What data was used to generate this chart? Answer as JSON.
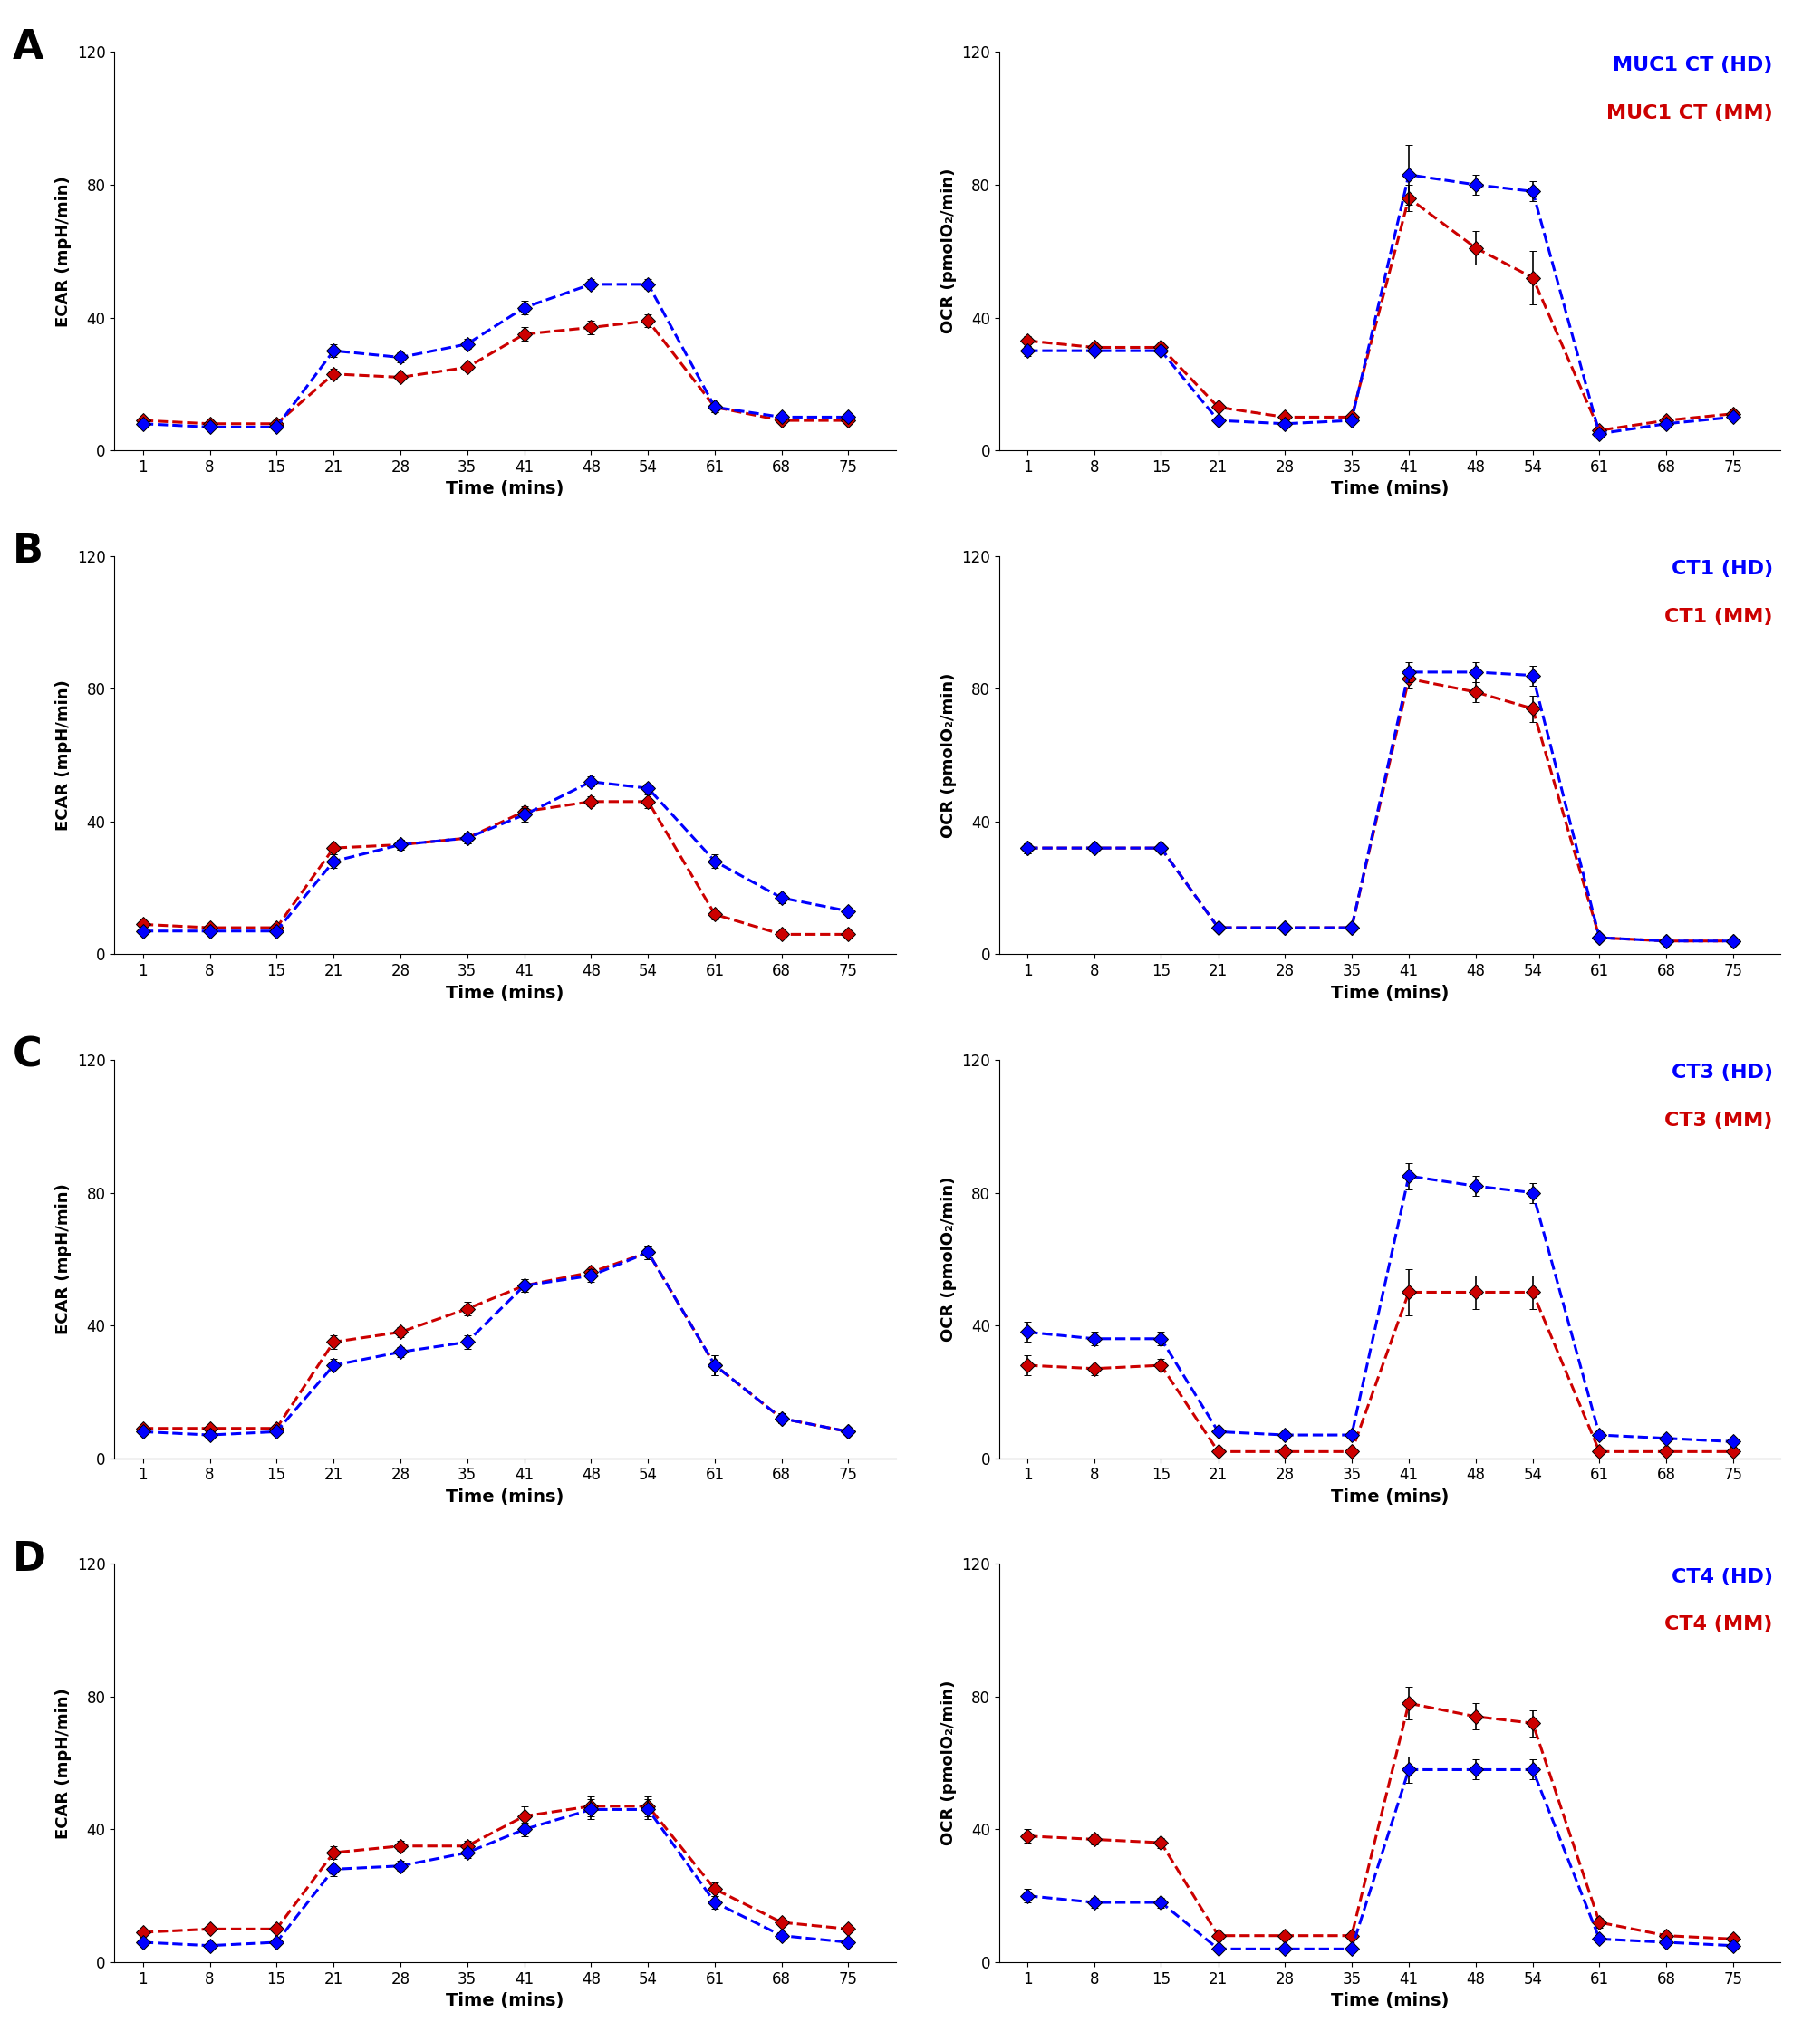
{
  "time_points": [
    1,
    8,
    15,
    21,
    28,
    35,
    41,
    48,
    54,
    61,
    68,
    75
  ],
  "panels": [
    {
      "label": "A",
      "legend_hd": "MUC1 CT (HD)",
      "legend_mm": "MUC1 CT (MM)",
      "ecar_hd": [
        8,
        7,
        7,
        30,
        28,
        32,
        43,
        50,
        50,
        13,
        10,
        10
      ],
      "ecar_mm": [
        9,
        8,
        8,
        23,
        22,
        25,
        35,
        37,
        39,
        13,
        9,
        9
      ],
      "ecar_hd_err": [
        1,
        0.5,
        0.5,
        2,
        1.5,
        1.5,
        2,
        1.5,
        1.5,
        1.5,
        1,
        1
      ],
      "ecar_mm_err": [
        1,
        0.5,
        0.5,
        1.5,
        1,
        1,
        2,
        2,
        2,
        1.5,
        1,
        1
      ],
      "ocr_hd": [
        30,
        30,
        30,
        9,
        8,
        9,
        83,
        80,
        78,
        5,
        8,
        10
      ],
      "ocr_mm": [
        33,
        31,
        31,
        13,
        10,
        10,
        76,
        61,
        52,
        6,
        9,
        11
      ],
      "ocr_hd_err": [
        1.5,
        1,
        1,
        1,
        0.5,
        0.5,
        9,
        3,
        3,
        1,
        1,
        1
      ],
      "ocr_mm_err": [
        1.5,
        1,
        1,
        1,
        0.5,
        0.5,
        4,
        5,
        8,
        1,
        1,
        1
      ]
    },
    {
      "label": "B",
      "legend_hd": "CT1 (HD)",
      "legend_mm": "CT1 (MM)",
      "ecar_hd": [
        7,
        7,
        7,
        28,
        33,
        35,
        42,
        52,
        50,
        28,
        17,
        13
      ],
      "ecar_mm": [
        9,
        8,
        8,
        32,
        33,
        35,
        43,
        46,
        46,
        12,
        6,
        6
      ],
      "ecar_hd_err": [
        0.8,
        0.5,
        0.5,
        2,
        1.5,
        1.5,
        2,
        1.5,
        1.5,
        2,
        1.5,
        1
      ],
      "ecar_mm_err": [
        0.8,
        0.5,
        0.5,
        2,
        1.5,
        1.5,
        1.5,
        1.5,
        2,
        1.5,
        1,
        1
      ],
      "ocr_hd": [
        32,
        32,
        32,
        8,
        8,
        8,
        85,
        85,
        84,
        5,
        4,
        4
      ],
      "ocr_mm": [
        32,
        32,
        32,
        8,
        8,
        8,
        83,
        79,
        74,
        5,
        4,
        4
      ],
      "ocr_hd_err": [
        1.5,
        1,
        1,
        1,
        0.5,
        0.5,
        3,
        3,
        3,
        0.5,
        0.5,
        0.5
      ],
      "ocr_mm_err": [
        1.5,
        1,
        1,
        1,
        0.5,
        0.5,
        3,
        3,
        4,
        0.5,
        0.5,
        0.5
      ]
    },
    {
      "label": "C",
      "legend_hd": "CT3 (HD)",
      "legend_mm": "CT3 (MM)",
      "ecar_hd": [
        8,
        7,
        8,
        28,
        32,
        35,
        52,
        55,
        62,
        28,
        12,
        8
      ],
      "ecar_mm": [
        9,
        9,
        9,
        35,
        38,
        45,
        52,
        56,
        62,
        28,
        12,
        8
      ],
      "ecar_hd_err": [
        0.8,
        0.5,
        1,
        2,
        1.5,
        2,
        2,
        2,
        2,
        3,
        1.5,
        1
      ],
      "ecar_mm_err": [
        0.8,
        0.5,
        1,
        2,
        1.5,
        2,
        2,
        2,
        2,
        3,
        1.5,
        1
      ],
      "ocr_hd": [
        38,
        36,
        36,
        8,
        7,
        7,
        85,
        82,
        80,
        7,
        6,
        5
      ],
      "ocr_mm": [
        28,
        27,
        28,
        2,
        2,
        2,
        50,
        50,
        50,
        2,
        2,
        2
      ],
      "ocr_hd_err": [
        3,
        2,
        2,
        1,
        0.8,
        0.8,
        4,
        3,
        3,
        1,
        0.8,
        0.8
      ],
      "ocr_mm_err": [
        3,
        2,
        2,
        0.5,
        0.5,
        0.5,
        7,
        5,
        5,
        0.5,
        0.5,
        0.5
      ]
    },
    {
      "label": "D",
      "legend_hd": "CT4 (HD)",
      "legend_mm": "CT4 (MM)",
      "ecar_hd": [
        6,
        5,
        6,
        28,
        29,
        33,
        40,
        46,
        46,
        18,
        8,
        6
      ],
      "ecar_mm": [
        9,
        10,
        10,
        33,
        35,
        35,
        44,
        47,
        47,
        22,
        12,
        10
      ],
      "ecar_hd_err": [
        0.8,
        0.5,
        0.8,
        2,
        1.5,
        1.5,
        2,
        3,
        3,
        2,
        1,
        1
      ],
      "ecar_mm_err": [
        0.8,
        0.5,
        0.8,
        2,
        1.5,
        1.5,
        3,
        3,
        3,
        2,
        1,
        1
      ],
      "ocr_hd": [
        20,
        18,
        18,
        4,
        4,
        4,
        58,
        58,
        58,
        7,
        6,
        5
      ],
      "ocr_mm": [
        38,
        37,
        36,
        8,
        8,
        8,
        78,
        74,
        72,
        12,
        8,
        7
      ],
      "ocr_hd_err": [
        2,
        1.5,
        1.5,
        0.5,
        0.5,
        0.5,
        4,
        3,
        3,
        1,
        0.8,
        0.8
      ],
      "ocr_mm_err": [
        2,
        1.5,
        1.5,
        1,
        0.8,
        0.8,
        5,
        4,
        4,
        1.5,
        1,
        1
      ]
    }
  ],
  "blue_color": "#0000FF",
  "red_color": "#CC0000",
  "ecar_ylim": [
    0,
    120
  ],
  "ocr_ylim": [
    0,
    120
  ],
  "yticks": [
    0,
    40,
    80,
    120
  ],
  "xlabel": "Time (mins)",
  "ecar_ylabel": "ECAR (mpH/min)",
  "ocr_ylabel": "OCR (pmolO₂/min)"
}
